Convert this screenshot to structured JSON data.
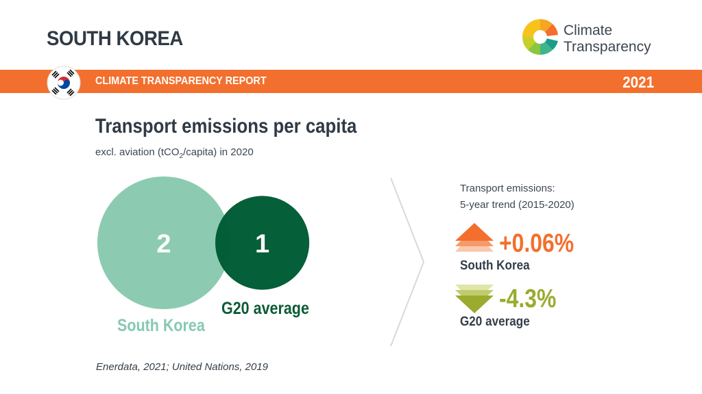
{
  "header": {
    "country": "SOUTH KOREA",
    "logo_line1": "Climate",
    "logo_line2": "Transparency"
  },
  "banner": {
    "report_label": "CLIMATE TRANSPARENCY REPORT",
    "year": "2021",
    "color": "#f36f2d"
  },
  "chart_data": {
    "type": "bubble",
    "title": "Transport emissions per capita",
    "subtitle_pre": "excl. aviation (tCO",
    "subtitle_sub": "2",
    "subtitle_post": "/capita) in 2020",
    "series": [
      {
        "name": "South Korea",
        "value": 2,
        "color": "#8ccbb2"
      },
      {
        "name": "G20 average",
        "value": 1,
        "color": "#005c35"
      }
    ]
  },
  "trend": {
    "heading_line1": "Transport emissions:",
    "heading_line2": "5-year trend (2015-2020)",
    "items": [
      {
        "name": "South Korea",
        "change": "+0.06%",
        "direction": "up",
        "color": "#f36f2d"
      },
      {
        "name": "G20 average",
        "change": "-4.3%",
        "direction": "down",
        "color": "#9aab2f"
      }
    ]
  },
  "source": "Enerdata, 2021; United Nations, 2019"
}
